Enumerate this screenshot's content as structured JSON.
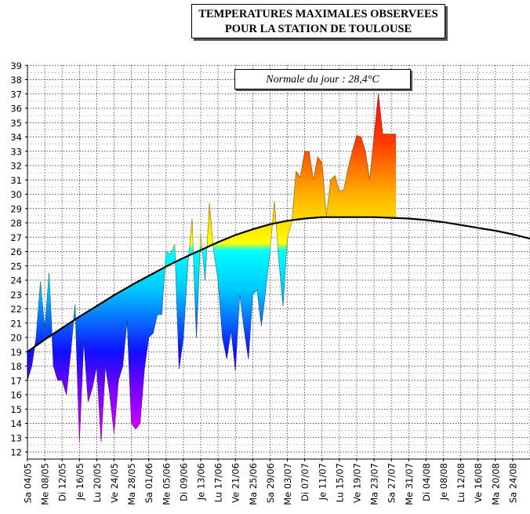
{
  "chart_data": {
    "type": "area",
    "title": [
      "TEMPERATURES MAXIMALES OBSERVEES",
      "POUR LA STATION DE TOULOUSE"
    ],
    "normal_label": "Normale du jour : 28,4°C",
    "ylim": [
      12,
      39
    ],
    "yticks": [
      12,
      13,
      14,
      15,
      16,
      17,
      18,
      19,
      20,
      21,
      22,
      23,
      24,
      25,
      26,
      27,
      28,
      29,
      30,
      31,
      32,
      33,
      34,
      35,
      36,
      37,
      38,
      39
    ],
    "xlim": [
      0,
      116
    ],
    "x_tick_labels": [
      "Sa 04/05",
      "Me 08/05",
      "Di 12/05",
      "Je 16/05",
      "Lu 20/05",
      "Ve 24/05",
      "Ma 28/05",
      "Sa 01/06",
      "Me 05/06",
      "Di 09/06",
      "Je 13/06",
      "Lu 17/06",
      "Ve 21/06",
      "Ma 25/06",
      "Sa 29/06",
      "Me 03/07",
      "Di 07/07",
      "Je 11/07",
      "Lu 15/07",
      "Ve 19/07",
      "Ma 23/07",
      "Sa 27/07",
      "Me 31/07",
      "Di 04/08",
      "Je 08/08",
      "Lu 12/08",
      "Ve 16/08",
      "Ma 20/08",
      "Sa 24/08"
    ],
    "series": [
      {
        "name": "Temperature maximale observee",
        "days": [
          0,
          1,
          2,
          3,
          4,
          5,
          6,
          7,
          8,
          9,
          10,
          11,
          12,
          13,
          14,
          15,
          16,
          17,
          18,
          19,
          20,
          21,
          22,
          23,
          24,
          25,
          26,
          27,
          28,
          29,
          30,
          31,
          32,
          33,
          34,
          35,
          36,
          37,
          38,
          39,
          40,
          41,
          42,
          43,
          44,
          45,
          46,
          47,
          48,
          49,
          50,
          51,
          52,
          53,
          54,
          55,
          56,
          57,
          58,
          59,
          60,
          61,
          62,
          63,
          64,
          65,
          66,
          67,
          68,
          69,
          70,
          71,
          72,
          73,
          74,
          75,
          76,
          77,
          78,
          79,
          80,
          81,
          82,
          83,
          84,
          85
        ],
        "values": [
          17,
          18,
          20,
          23.9,
          20.6,
          24.5,
          18,
          17,
          17,
          16,
          19,
          22.3,
          12.7,
          19.8,
          15.5,
          16.5,
          18,
          12.7,
          18,
          16,
          13.3,
          17,
          18,
          21.2,
          14,
          13.6,
          14,
          17.8,
          20,
          20.3,
          21.6,
          21.6,
          26,
          25.8,
          26.5,
          17.8,
          20,
          25,
          28.3,
          20,
          27.3,
          24,
          29.4,
          26,
          24,
          20,
          18.5,
          20.5,
          17.7,
          23,
          20.6,
          18.5,
          23,
          23.3,
          20.8,
          23.3,
          26,
          29.5,
          25.5,
          22.2,
          27,
          28,
          31.6,
          31.2,
          33,
          33,
          31,
          32.6,
          32.2,
          28.5,
          31,
          31.3,
          30.2,
          30.3,
          31.8,
          33,
          34.1,
          34,
          33,
          31,
          34,
          37,
          34.2,
          34.2,
          34.2,
          34.2
        ]
      },
      {
        "name": "Normale du jour",
        "days": [
          0,
          4,
          8,
          12,
          16,
          20,
          24,
          28,
          32,
          36,
          40,
          44,
          48,
          52,
          56,
          60,
          64,
          68,
          72,
          76,
          80,
          84,
          88,
          92,
          96,
          100,
          104,
          108,
          112,
          116
        ],
        "values": [
          19.0,
          19.85,
          20.65,
          21.45,
          22.2,
          22.95,
          23.65,
          24.3,
          24.95,
          25.55,
          26.1,
          26.65,
          27.15,
          27.55,
          27.9,
          28.15,
          28.3,
          28.4,
          28.4,
          28.4,
          28.4,
          28.35,
          28.3,
          28.2,
          28.05,
          27.85,
          27.65,
          27.45,
          27.2,
          26.9
        ]
      }
    ]
  }
}
